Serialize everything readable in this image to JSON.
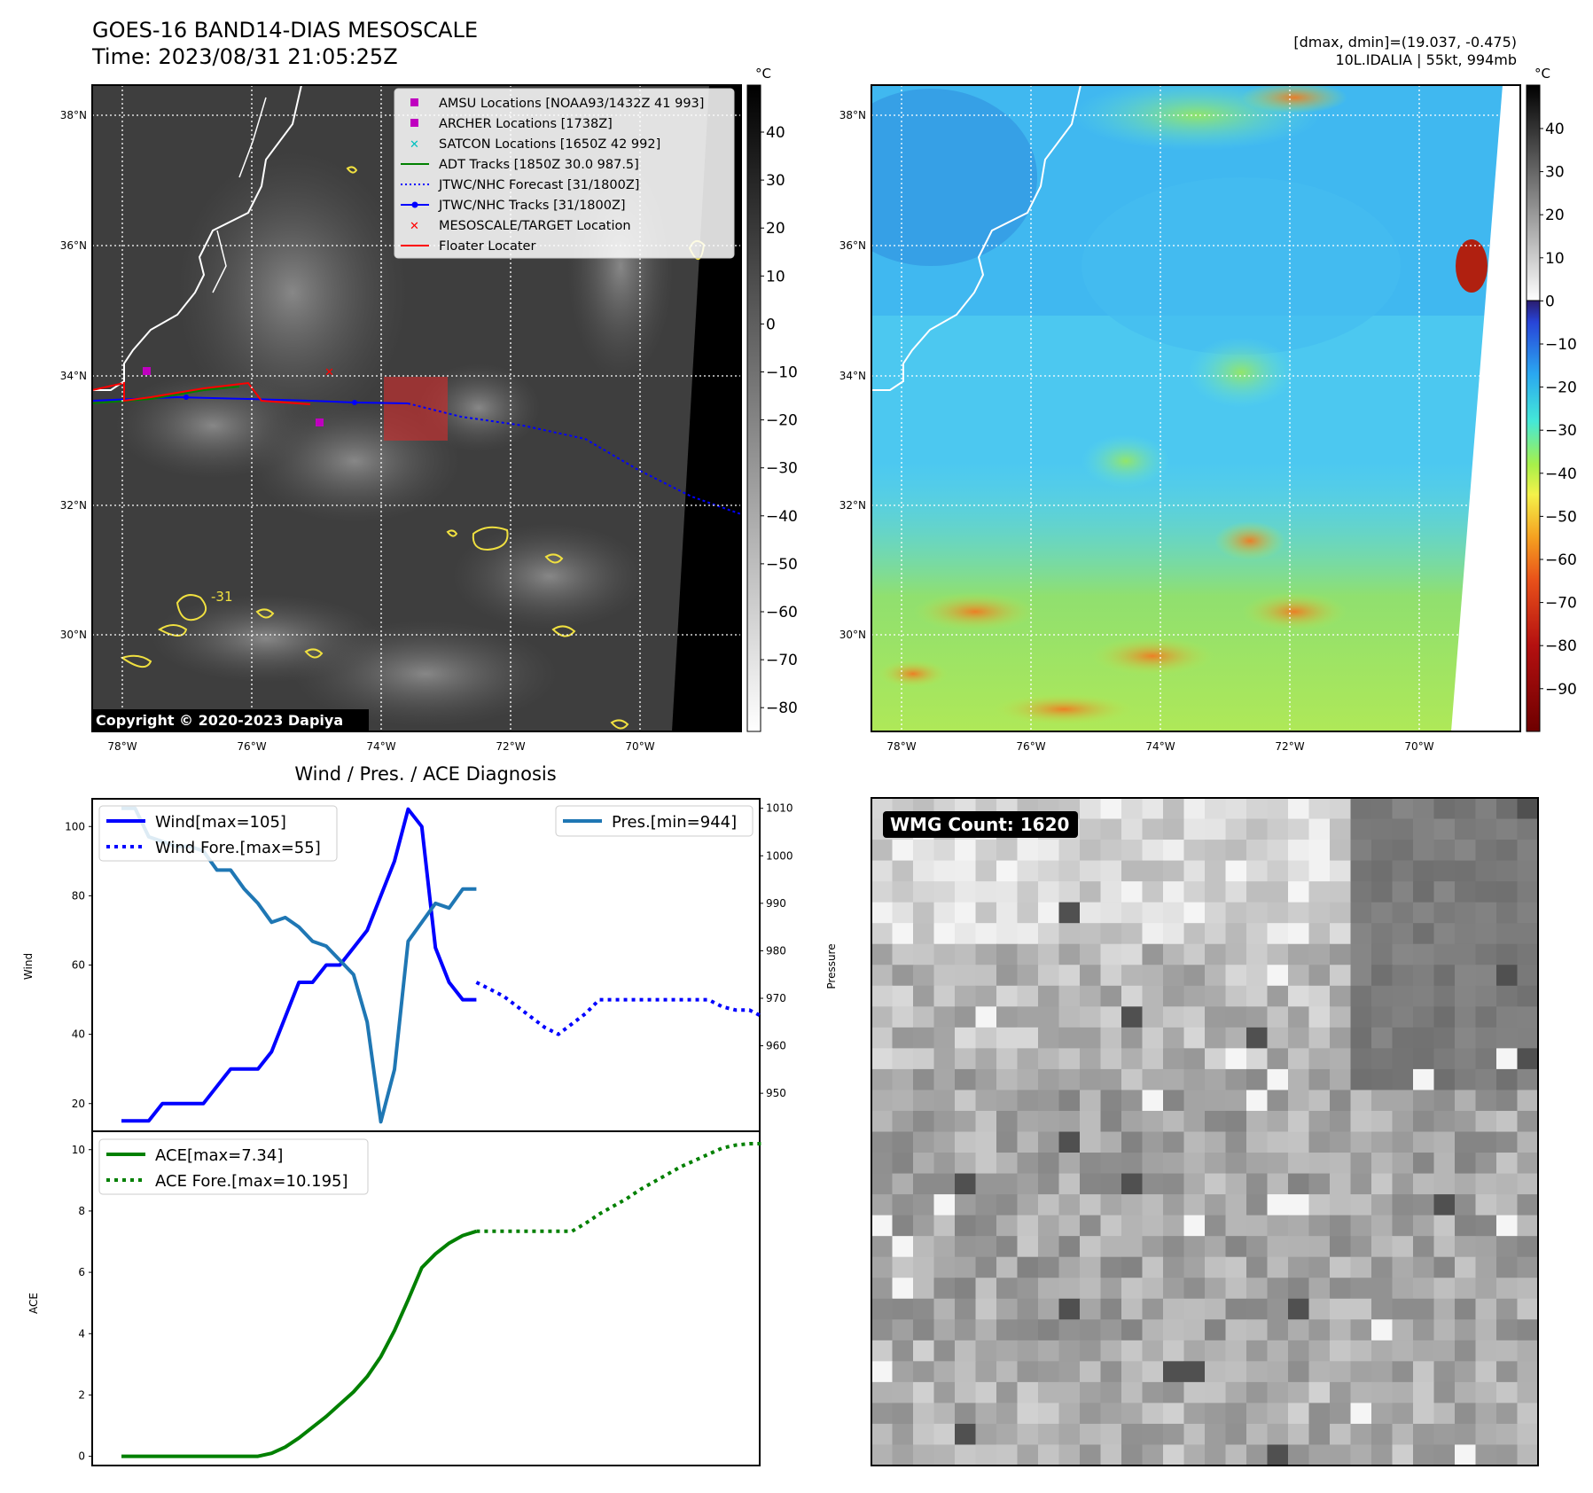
{
  "header": {
    "title_line1": "GOES-16 BAND14-DIAS MESOSCALE",
    "title_line2": "Time: 2023/08/31 21:05:25Z",
    "right_line1": "[dmax, dmin]=(19.037, -0.475)",
    "right_line2": "10L.IDALIA | 55kt, 994mb"
  },
  "map_axes": {
    "lat_labels": [
      "38°N",
      "36°N",
      "34°N",
      "32°N",
      "30°N"
    ],
    "lon_labels": [
      "78°W",
      "76°W",
      "74°W",
      "72°W",
      "70°W"
    ]
  },
  "ir_panel": {
    "colorbar_unit": "°C",
    "colorbar_ticks": [
      "40",
      "30",
      "20",
      "10",
      "0",
      "−10",
      "−20",
      "−30",
      "−40",
      "−50",
      "−60",
      "−70",
      "−80"
    ],
    "copyright": "Copyright © 2020-2023 Dapiya",
    "contour_label": "-31",
    "legend": [
      {
        "label": "AMSU Locations [NOAA93/1432Z 41 993]",
        "color": "#bf00bf",
        "style": "square"
      },
      {
        "label": "ARCHER Locations [1738Z]",
        "color": "#bf00bf",
        "style": "square"
      },
      {
        "label": "SATCON Locations [1650Z 42 992]",
        "color": "#00bfbf",
        "style": "x"
      },
      {
        "label": "ADT Tracks [1850Z 30.0 987.5]",
        "color": "#008000",
        "style": "line"
      },
      {
        "label": "JTWC/NHC Forecast [31/1800Z]",
        "color": "#0000ff",
        "style": "dotted"
      },
      {
        "label": "JTWC/NHC Tracks [31/1800Z]",
        "color": "#0000ff",
        "style": "line-dot"
      },
      {
        "label": "MESOSCALE/TARGET Location",
        "color": "#ff0000",
        "style": "x"
      },
      {
        "label": "Floater Locater",
        "color": "#ff0000",
        "style": "line"
      }
    ]
  },
  "color_panel": {
    "colorbar_unit": "°C",
    "colorbar_ticks": [
      "40",
      "30",
      "20",
      "10",
      "0",
      "−10",
      "−20",
      "−30",
      "−40",
      "−50",
      "−60",
      "−70",
      "−80",
      "−90"
    ]
  },
  "wmg": {
    "label": "WMG Count: 1620"
  },
  "chart_data": [
    {
      "type": "line",
      "title": "Wind / Pres. / ACE Diagnosis",
      "ylabel": "Wind",
      "ylabel2": "Pressure",
      "ylim": [
        12,
        108
      ],
      "ylim2": [
        942,
        1012
      ],
      "yticks": [
        "100",
        "80",
        "60",
        "40",
        "20"
      ],
      "yticks2": [
        "1010",
        "1000",
        "990",
        "980",
        "970",
        "960",
        "950"
      ],
      "series": [
        {
          "name": "Wind[max=105]",
          "color": "#0000ff",
          "style": "solid",
          "x": [
            0,
            1,
            2,
            3,
            4,
            5,
            6,
            7,
            8,
            9,
            10,
            11,
            12,
            13,
            14,
            15,
            16,
            17,
            18,
            19,
            20,
            21,
            22,
            23,
            24,
            25,
            26
          ],
          "values": [
            15,
            15,
            15,
            20,
            20,
            20,
            20,
            25,
            30,
            30,
            30,
            35,
            45,
            55,
            55,
            60,
            60,
            65,
            70,
            80,
            90,
            105,
            100,
            65,
            55,
            50,
            50
          ]
        },
        {
          "name": "Wind Fore.[max=55]",
          "color": "#0000ff",
          "style": "dotted",
          "x": [
            26,
            27,
            28,
            29,
            30,
            31,
            32,
            33,
            34,
            35,
            36,
            37,
            38,
            39,
            40,
            41,
            42,
            43,
            44,
            45,
            46,
            47
          ],
          "values": [
            55,
            53,
            51,
            48,
            45,
            42,
            40,
            43,
            46,
            50,
            50,
            50,
            50,
            50,
            50,
            50,
            50,
            50,
            48,
            47,
            47,
            45
          ]
        },
        {
          "name": "Pres.[min=944]",
          "color": "#1f77b4",
          "style": "solid",
          "axis": "right",
          "x": [
            0,
            1,
            2,
            3,
            4,
            5,
            6,
            7,
            8,
            9,
            10,
            11,
            12,
            13,
            14,
            15,
            16,
            17,
            18,
            19,
            20,
            21,
            22,
            23,
            24,
            25,
            26
          ],
          "values": [
            1010,
            1010,
            1004,
            1003,
            1002,
            1002,
            1001,
            997,
            997,
            993,
            990,
            986,
            987,
            985,
            982,
            981,
            978,
            975,
            965,
            944,
            955,
            982,
            986,
            990,
            989,
            993,
            993
          ]
        }
      ]
    },
    {
      "type": "line",
      "ylabel": "ACE",
      "ylim": [
        -0.3,
        10.6
      ],
      "yticks": [
        "10",
        "8",
        "6",
        "4",
        "2",
        "0"
      ],
      "series": [
        {
          "name": "ACE[max=7.34]",
          "color": "#008000",
          "style": "solid",
          "x": [
            0,
            1,
            2,
            3,
            4,
            5,
            6,
            7,
            8,
            9,
            10,
            11,
            12,
            13,
            14,
            15,
            16,
            17,
            18,
            19,
            20,
            21,
            22,
            23,
            24,
            25,
            26
          ],
          "values": [
            0,
            0,
            0,
            0,
            0,
            0,
            0,
            0,
            0,
            0,
            0,
            0.1,
            0.3,
            0.6,
            0.95,
            1.3,
            1.7,
            2.1,
            2.6,
            3.25,
            4.1,
            5.1,
            6.15,
            6.6,
            6.95,
            7.2,
            7.34
          ]
        },
        {
          "name": "ACE Fore.[max=10.195]",
          "color": "#008000",
          "style": "dotted",
          "x": [
            26,
            27,
            28,
            29,
            30,
            31,
            32,
            33,
            34,
            35,
            36,
            37,
            38,
            39,
            40,
            41,
            42,
            43,
            44,
            45,
            46,
            47
          ],
          "values": [
            7.34,
            7.34,
            7.34,
            7.34,
            7.34,
            7.34,
            7.34,
            7.34,
            7.6,
            7.9,
            8.15,
            8.4,
            8.7,
            8.95,
            9.2,
            9.45,
            9.65,
            9.85,
            10.05,
            10.15,
            10.195,
            10.195
          ]
        }
      ]
    }
  ]
}
